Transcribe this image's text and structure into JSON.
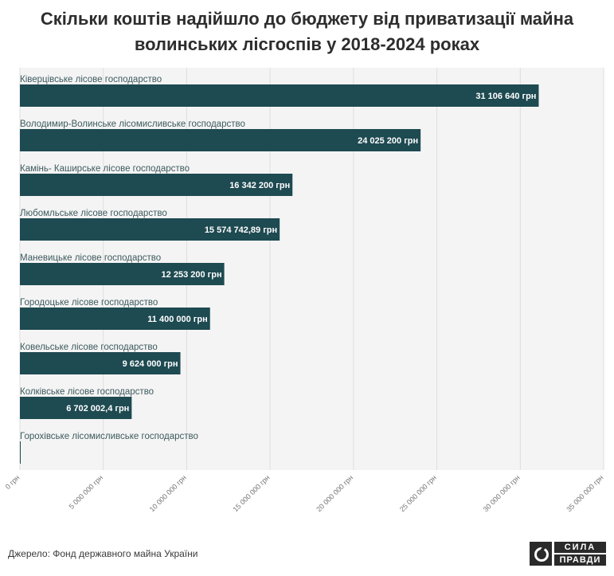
{
  "title": "Скільки коштів надійшло до бюджету від приватизації майна волинських лісгоспів у 2018-2024 роках",
  "source": "Джерело: Фонд державного майна України",
  "logo": {
    "line1": "СИЛА",
    "line2": "ПРАВДИ"
  },
  "colors": {
    "bar": "#1e4a51",
    "plot_bg": "#f4f4f4",
    "grid": "#dedede",
    "label": "#3d5a5e",
    "value": "#ffffff"
  },
  "chart_data": {
    "type": "bar",
    "orientation": "horizontal",
    "categories": [
      "Ківерцівське лісове господарство",
      "Володимир-Волинське лісомисливське господарство",
      "Камінь- Каширське лісове господарство",
      "Любомльське лісове господарство",
      "Маневицьке лісове господарство",
      "Городоцьке лісове господарство",
      "Ковельське лісове господарство",
      "Колківське лісове господарство",
      "Горохівське лісомисливське господарство"
    ],
    "values": [
      31106640,
      24025200,
      16342200,
      15574742.89,
      12253200,
      11400000,
      9624000,
      6702002.4,
      30000
    ],
    "value_labels": [
      "31 106 640 грн",
      "24 025 200 грн",
      "16 342 200 грн",
      "15 574 742,89 грн",
      "12 253 200 грн",
      "11 400 000 грн",
      "9 624 000 грн",
      "6 702 002,4 грн",
      ""
    ],
    "xlim": [
      0,
      35000000
    ],
    "xticks": [
      0,
      5000000,
      10000000,
      15000000,
      20000000,
      25000000,
      30000000,
      35000000
    ],
    "xtick_labels": [
      "0 грн",
      "5 000 000 грн",
      "10 000 000 грн",
      "15 000 000 грн",
      "20 000 000 грн",
      "25 000 000 грн",
      "30 000 000 грн",
      "35 000 000 грн"
    ],
    "grid": true
  }
}
